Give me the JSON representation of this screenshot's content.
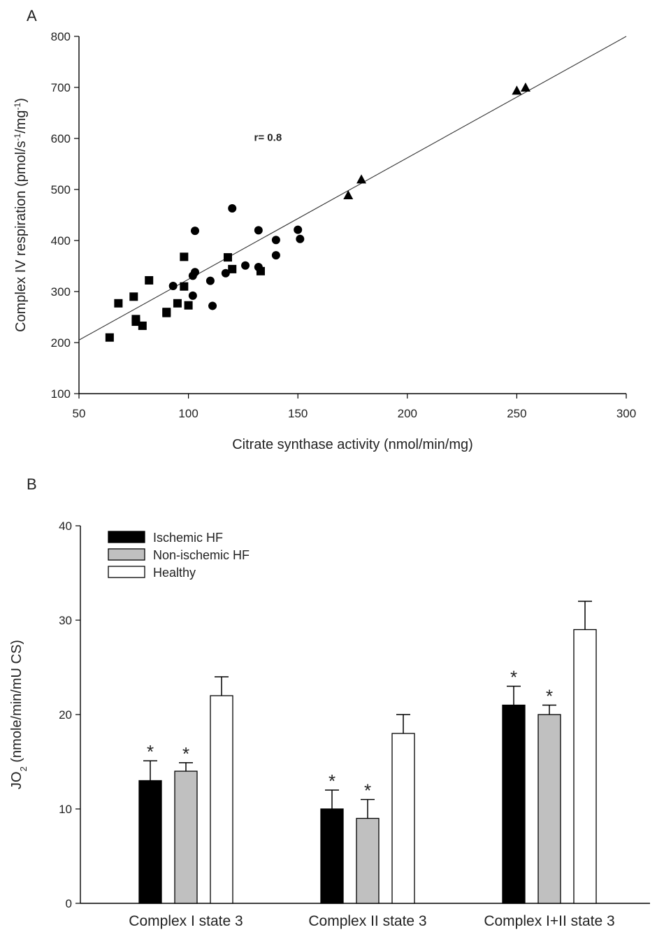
{
  "chart_data": [
    {
      "type": "scatter",
      "panel_label": "A",
      "xlabel": "Citrate synthase activity (nmol/min/mg)",
      "ylabel_parts": [
        "Complex IV respiration (pmol/s",
        "-1",
        "/mg",
        "-1",
        ")"
      ],
      "xlim": [
        50,
        300
      ],
      "ylim": [
        100,
        800
      ],
      "xticks": [
        50,
        100,
        150,
        200,
        250,
        300
      ],
      "yticks": [
        100,
        200,
        300,
        400,
        500,
        600,
        700,
        800
      ],
      "annotation": "r= 0.8",
      "annotation_pos": [
        130,
        595
      ],
      "grid": false,
      "series": [
        {
          "marker": "square",
          "points": [
            [
              64,
              210
            ],
            [
              68,
              277
            ],
            [
              75,
              290
            ],
            [
              76,
              246
            ],
            [
              76,
              241
            ],
            [
              79,
              233
            ],
            [
              82,
              322
            ],
            [
              90,
              260
            ],
            [
              90,
              258
            ],
            [
              95,
              277
            ],
            [
              98,
              368
            ],
            [
              98,
              310
            ],
            [
              100,
              273
            ],
            [
              118,
              367
            ],
            [
              120,
              344
            ],
            [
              133,
              340
            ]
          ]
        },
        {
          "marker": "circle",
          "points": [
            [
              93,
              311
            ],
            [
              102,
              292
            ],
            [
              102,
              331
            ],
            [
              103,
              338
            ],
            [
              103,
              419
            ],
            [
              110,
              321
            ],
            [
              111,
              272
            ],
            [
              117,
              336
            ],
            [
              120,
              463
            ],
            [
              126,
              351
            ],
            [
              132,
              420
            ],
            [
              132,
              348
            ],
            [
              140,
              401
            ],
            [
              140,
              371
            ],
            [
              150,
              421
            ],
            [
              151,
              403
            ]
          ]
        },
        {
          "marker": "triangle",
          "points": [
            [
              173,
              489
            ],
            [
              179,
              520
            ],
            [
              250,
              694
            ],
            [
              254,
              700
            ]
          ]
        }
      ],
      "fit_line": [
        [
          50,
          205
        ],
        [
          300,
          800
        ]
      ]
    },
    {
      "type": "bar",
      "panel_label": "B",
      "categories": [
        "Complex I state 3",
        "Complex II state 3",
        "Complex I+II state 3"
      ],
      "ylabel_main": "JO",
      "ylabel_sub": "2",
      "ylabel_rest": " (nmole/min/mU CS)",
      "ylim": [
        0,
        40
      ],
      "yticks": [
        0,
        10,
        20,
        30,
        40
      ],
      "grid": false,
      "legend_position": "top-left",
      "series": [
        {
          "name": "Ischemic HF",
          "color": "#000000",
          "values": [
            13,
            10,
            21
          ],
          "errors": [
            2.1,
            2.0,
            2.0
          ],
          "significance": [
            "*",
            "*",
            "*"
          ]
        },
        {
          "name": "Non-ischemic HF",
          "color": "#c0c0c0",
          "values": [
            14,
            9,
            20
          ],
          "errors": [
            0.9,
            2.0,
            1.0
          ],
          "significance": [
            "*",
            "*",
            "*"
          ]
        },
        {
          "name": "Healthy",
          "color": "#ffffff",
          "values": [
            22,
            18,
            29
          ],
          "errors": [
            2.0,
            2.0,
            3.0
          ],
          "significance": [
            "",
            "",
            ""
          ]
        }
      ]
    }
  ]
}
